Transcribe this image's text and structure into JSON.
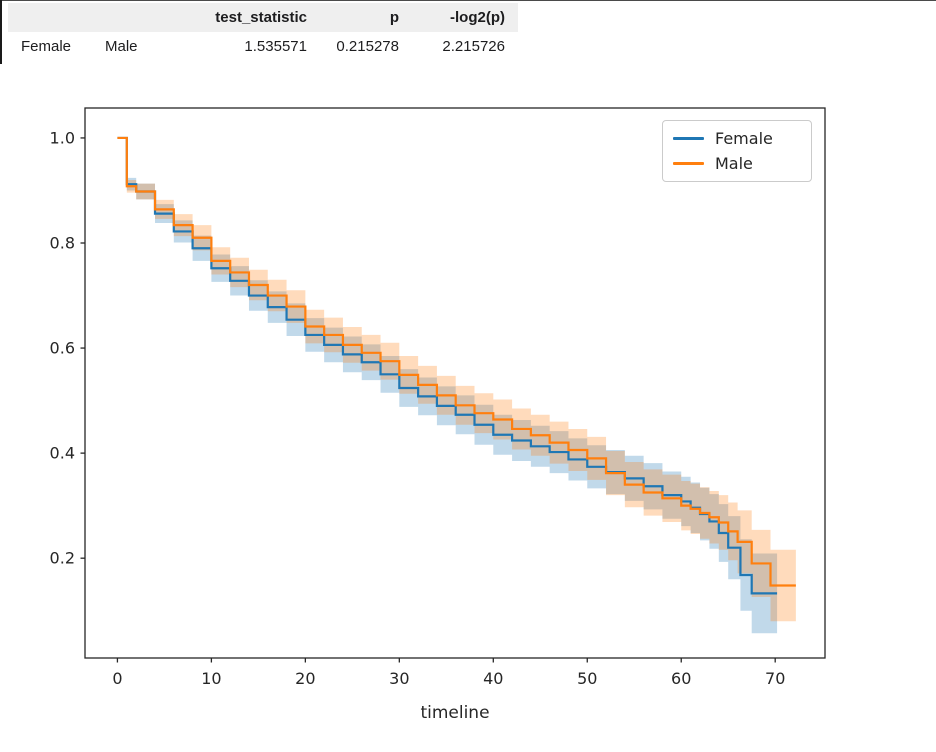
{
  "stats_table": {
    "columns": [
      "",
      "",
      "test_statistic",
      "p",
      "-log2(p)"
    ],
    "rows": [
      {
        "index": [
          "Female",
          "Male"
        ],
        "values": [
          "1.535571",
          "0.215278",
          "2.215726"
        ]
      }
    ]
  },
  "chart_data": {
    "type": "line",
    "subtype": "kaplan-meier-step-with-confidence-bands",
    "title": "",
    "xlabel": "timeline",
    "ylabel": "",
    "xlim": [
      -3.45,
      75.3
    ],
    "ylim": [
      0.01,
      1.057
    ],
    "xticks": [
      0,
      10,
      20,
      30,
      40,
      50,
      60,
      70
    ],
    "yticks": [
      0.2,
      0.4,
      0.6,
      0.8,
      1.0
    ],
    "grid": false,
    "legend_position": "upper right",
    "text_color": "#262626",
    "point_format": [
      "time",
      "survival_probability",
      "ci_halfwidth"
    ],
    "series": [
      {
        "name": "Female",
        "color": "#1f77b4",
        "ci_fill_opacity": 0.28,
        "points": [
          [
            0,
            1.0,
            0
          ],
          [
            1,
            0.912,
            0.012
          ],
          [
            2,
            0.898,
            0.015
          ],
          [
            4,
            0.856,
            0.018
          ],
          [
            6,
            0.822,
            0.021
          ],
          [
            8,
            0.79,
            0.024
          ],
          [
            10,
            0.752,
            0.026
          ],
          [
            12,
            0.728,
            0.028
          ],
          [
            14,
            0.7,
            0.029
          ],
          [
            16,
            0.678,
            0.03
          ],
          [
            18,
            0.654,
            0.031
          ],
          [
            20,
            0.625,
            0.032
          ],
          [
            22,
            0.606,
            0.033
          ],
          [
            24,
            0.588,
            0.034
          ],
          [
            26,
            0.573,
            0.034
          ],
          [
            28,
            0.55,
            0.035
          ],
          [
            30,
            0.524,
            0.036
          ],
          [
            32,
            0.508,
            0.036
          ],
          [
            34,
            0.49,
            0.037
          ],
          [
            36,
            0.473,
            0.037
          ],
          [
            38,
            0.454,
            0.038
          ],
          [
            40,
            0.435,
            0.038
          ],
          [
            42,
            0.424,
            0.039
          ],
          [
            44,
            0.413,
            0.039
          ],
          [
            46,
            0.402,
            0.04
          ],
          [
            48,
            0.388,
            0.04
          ],
          [
            50,
            0.374,
            0.041
          ],
          [
            52,
            0.364,
            0.042
          ],
          [
            54,
            0.352,
            0.043
          ],
          [
            56,
            0.337,
            0.044
          ],
          [
            58,
            0.32,
            0.045
          ],
          [
            60,
            0.308,
            0.047
          ],
          [
            61,
            0.296,
            0.048
          ],
          [
            62,
            0.284,
            0.05
          ],
          [
            63,
            0.27,
            0.052
          ],
          [
            64,
            0.248,
            0.055
          ],
          [
            65,
            0.22,
            0.06
          ],
          [
            66.3,
            0.168,
            0.068
          ],
          [
            67.5,
            0.133,
            0.076
          ],
          [
            70.2,
            0.133,
            0.076
          ]
        ]
      },
      {
        "name": "Male",
        "color": "#ff7f0e",
        "ci_fill_opacity": 0.28,
        "points": [
          [
            0,
            1.0,
            0
          ],
          [
            1,
            0.908,
            0.012
          ],
          [
            2,
            0.898,
            0.015
          ],
          [
            4,
            0.864,
            0.018
          ],
          [
            6,
            0.834,
            0.021
          ],
          [
            8,
            0.81,
            0.024
          ],
          [
            10,
            0.766,
            0.026
          ],
          [
            12,
            0.744,
            0.028
          ],
          [
            14,
            0.72,
            0.029
          ],
          [
            16,
            0.7,
            0.03
          ],
          [
            18,
            0.679,
            0.031
          ],
          [
            20,
            0.641,
            0.032
          ],
          [
            22,
            0.625,
            0.033
          ],
          [
            24,
            0.606,
            0.034
          ],
          [
            26,
            0.591,
            0.034
          ],
          [
            28,
            0.575,
            0.035
          ],
          [
            30,
            0.549,
            0.036
          ],
          [
            32,
            0.53,
            0.036
          ],
          [
            34,
            0.51,
            0.037
          ],
          [
            36,
            0.491,
            0.037
          ],
          [
            38,
            0.476,
            0.038
          ],
          [
            40,
            0.464,
            0.038
          ],
          [
            42,
            0.446,
            0.039
          ],
          [
            44,
            0.434,
            0.039
          ],
          [
            46,
            0.42,
            0.04
          ],
          [
            48,
            0.406,
            0.04
          ],
          [
            50,
            0.39,
            0.041
          ],
          [
            52,
            0.362,
            0.042
          ],
          [
            54,
            0.34,
            0.043
          ],
          [
            56,
            0.325,
            0.044
          ],
          [
            58,
            0.314,
            0.045
          ],
          [
            60,
            0.3,
            0.047
          ],
          [
            61,
            0.294,
            0.048
          ],
          [
            62,
            0.286,
            0.049
          ],
          [
            63,
            0.278,
            0.05
          ],
          [
            64,
            0.268,
            0.052
          ],
          [
            65,
            0.251,
            0.055
          ],
          [
            66,
            0.231,
            0.06
          ],
          [
            67.5,
            0.19,
            0.064
          ],
          [
            69.5,
            0.148,
            0.068
          ],
          [
            72.2,
            0.148,
            0.068
          ]
        ]
      }
    ]
  }
}
